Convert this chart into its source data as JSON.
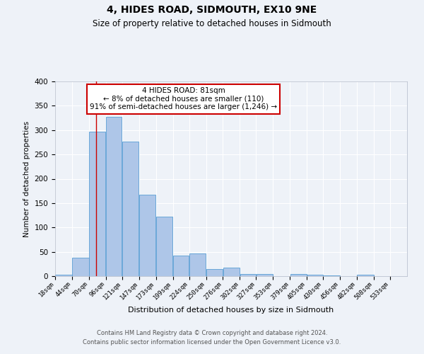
{
  "title": "4, HIDES ROAD, SIDMOUTH, EX10 9NE",
  "subtitle": "Size of property relative to detached houses in Sidmouth",
  "xlabel": "Distribution of detached houses by size in Sidmouth",
  "ylabel": "Number of detached properties",
  "bin_labels": [
    "18sqm",
    "44sqm",
    "70sqm",
    "96sqm",
    "121sqm",
    "147sqm",
    "173sqm",
    "199sqm",
    "224sqm",
    "250sqm",
    "276sqm",
    "302sqm",
    "327sqm",
    "353sqm",
    "379sqm",
    "405sqm",
    "430sqm",
    "456sqm",
    "482sqm",
    "508sqm",
    "533sqm"
  ],
  "bar_values": [
    3,
    38,
    297,
    328,
    277,
    168,
    122,
    42,
    46,
    15,
    17,
    4,
    5,
    0,
    5,
    3,
    1,
    0,
    3,
    0,
    0
  ],
  "bar_color": "#aec6e8",
  "bar_edge_color": "#5a9fd4",
  "property_line_x": 81,
  "bin_edges": [
    18,
    44,
    70,
    96,
    121,
    147,
    173,
    199,
    224,
    250,
    276,
    302,
    327,
    353,
    379,
    405,
    430,
    456,
    482,
    508,
    533,
    559
  ],
  "annotation_text": "4 HIDES ROAD: 81sqm\n← 8% of detached houses are smaller (110)\n91% of semi-detached houses are larger (1,246) →",
  "annotation_box_color": "#ffffff",
  "annotation_box_edge_color": "#cc0000",
  "footer_line1": "Contains HM Land Registry data © Crown copyright and database right 2024.",
  "footer_line2": "Contains public sector information licensed under the Open Government Licence v3.0.",
  "ylim": [
    0,
    400
  ],
  "background_color": "#eef2f8",
  "grid_color": "#ffffff",
  "line_color": "#cc0000"
}
